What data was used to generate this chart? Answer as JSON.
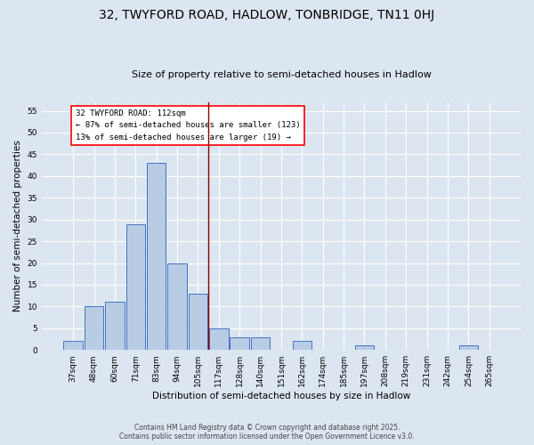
{
  "title": "32, TWYFORD ROAD, HADLOW, TONBRIDGE, TN11 0HJ",
  "subtitle": "Size of property relative to semi-detached houses in Hadlow",
  "xlabel": "Distribution of semi-detached houses by size in Hadlow",
  "ylabel": "Number of semi-detached properties",
  "bin_labels": [
    "37sqm",
    "48sqm",
    "60sqm",
    "71sqm",
    "83sqm",
    "94sqm",
    "105sqm",
    "117sqm",
    "128sqm",
    "140sqm",
    "151sqm",
    "162sqm",
    "174sqm",
    "185sqm",
    "197sqm",
    "208sqm",
    "219sqm",
    "231sqm",
    "242sqm",
    "254sqm",
    "265sqm"
  ],
  "bin_values": [
    2,
    10,
    11,
    29,
    43,
    20,
    13,
    5,
    3,
    3,
    0,
    2,
    0,
    0,
    1,
    0,
    0,
    0,
    0,
    1,
    0
  ],
  "bar_color": "#b8cce4",
  "bar_edge_color": "#4472c4",
  "background_color": "#dce6f1",
  "property_line_x": 6.5,
  "annotation_text_line1": "32 TWYFORD ROAD: 112sqm",
  "annotation_text_line2": "← 87% of semi-detached houses are smaller (123)",
  "annotation_text_line3": "13% of semi-detached houses are larger (19) →",
  "ylim": [
    0,
    57
  ],
  "yticks": [
    0,
    5,
    10,
    15,
    20,
    25,
    30,
    35,
    40,
    45,
    50,
    55
  ],
  "footer_line1": "Contains HM Land Registry data © Crown copyright and database right 2025.",
  "footer_line2": "Contains public sector information licensed under the Open Government Licence v3.0.",
  "title_fontsize": 10,
  "subtitle_fontsize": 8,
  "axis_label_fontsize": 7.5,
  "tick_fontsize": 6.5,
  "annotation_fontsize": 6.5,
  "footer_fontsize": 5.5
}
